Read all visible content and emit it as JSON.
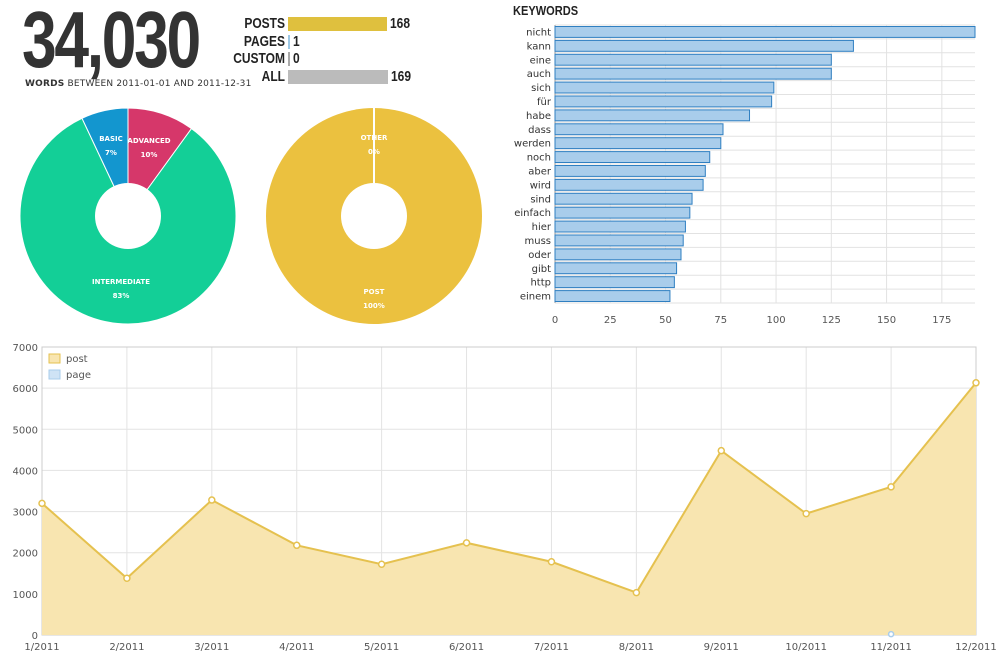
{
  "summary": {
    "total_words": "34,030",
    "words_label": "WORDS",
    "words_range": "BETWEEN 2011-01-01 AND 2011-12-31"
  },
  "counts": [
    {
      "label": "POSTS",
      "value": 168,
      "display": "168",
      "color": "#dfc03e"
    },
    {
      "label": "PAGES",
      "value": 1,
      "display": "1",
      "color": "#9ec9e6"
    },
    {
      "label": "CUSTOM",
      "value": 0,
      "display": "0",
      "color": "#aaaaaa"
    },
    {
      "label": "ALL",
      "value": 169,
      "display": "169",
      "color": "#bbbbbb"
    }
  ],
  "chart_data": [
    {
      "type": "pie",
      "slices": [
        {
          "label": "ADVANCED",
          "pct_label": "10%",
          "value": 10,
          "color": "#d6376a"
        },
        {
          "label": "INTERMEDIATE",
          "pct_label": "83%",
          "value": 83,
          "color": "#13cf97"
        },
        {
          "label": "BASIC",
          "pct_label": "7%",
          "value": 7,
          "color": "#1396cf"
        }
      ]
    },
    {
      "type": "pie",
      "slices": [
        {
          "label": "POST",
          "pct_label": "100%",
          "value": 100,
          "color": "#ebc13f"
        },
        {
          "label": "OTHER",
          "pct_label": "0%",
          "value": 0,
          "color": "#ffffff"
        }
      ]
    },
    {
      "type": "bar",
      "orientation": "horizontal",
      "title": "KEYWORDS",
      "categories": [
        "nicht",
        "kann",
        "eine",
        "auch",
        "sich",
        "für",
        "habe",
        "dass",
        "werden",
        "noch",
        "aber",
        "wird",
        "sind",
        "einfach",
        "hier",
        "muss",
        "oder",
        "gibt",
        "http",
        "einem"
      ],
      "values": [
        190,
        135,
        125,
        125,
        99,
        98,
        88,
        76,
        75,
        70,
        68,
        67,
        62,
        61,
        59,
        58,
        57,
        55,
        54,
        52
      ],
      "xlim": [
        0,
        190
      ],
      "xticks": [
        0,
        25,
        50,
        75,
        100,
        125,
        150,
        175
      ],
      "color": "#a9cdeb",
      "stroke": "#2f7fc1"
    },
    {
      "type": "area",
      "categories": [
        "1/2011",
        "2/2011",
        "3/2011",
        "4/2011",
        "5/2011",
        "6/2011",
        "7/2011",
        "8/2011",
        "9/2011",
        "10/2011",
        "11/2011",
        "12/2011"
      ],
      "ylim": [
        0,
        7000
      ],
      "yticks": [
        0,
        1000,
        2000,
        3000,
        4000,
        5000,
        6000,
        7000
      ],
      "legend_position": "top-left",
      "series": [
        {
          "name": "post",
          "color": "#e5c14f",
          "fill": "#f8e5b0",
          "values": [
            3200,
            1380,
            3280,
            2180,
            1720,
            2240,
            1780,
            1030,
            4480,
            2950,
            3600,
            6130
          ]
        },
        {
          "name": "page",
          "color": "#a9cdeb",
          "fill": "#cfe3f5",
          "values": [
            null,
            null,
            null,
            null,
            null,
            null,
            null,
            null,
            null,
            null,
            20,
            null
          ]
        }
      ]
    }
  ]
}
